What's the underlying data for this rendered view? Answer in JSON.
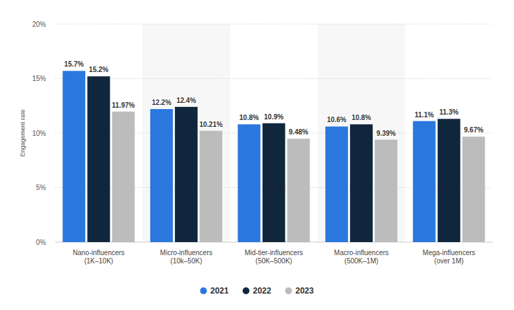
{
  "chart_data": {
    "type": "bar",
    "y_label": "Engagement rate",
    "categories": [
      "Nano-influencers\n(1K–10K)",
      "Micro-influencers\n(10k–50K)",
      "Mid-tier-influencers\n(50K–500K)",
      "Macro-influencers\n(500K–1M)",
      "Mega-influencers\n(over 1M)"
    ],
    "series": [
      {
        "name": "2021",
        "color": "#2a78de",
        "values": [
          15.7,
          12.2,
          10.8,
          10.6,
          11.1
        ],
        "value_labels": [
          "15.7%",
          "12.2%",
          "10.8%",
          "10.6%",
          "11.1%"
        ]
      },
      {
        "name": "2022",
        "color": "#0f263d",
        "values": [
          15.2,
          12.4,
          10.9,
          10.8,
          11.3
        ],
        "value_labels": [
          "15.2%",
          "12.4%",
          "10.9%",
          "10.8%",
          "11.3%"
        ]
      },
      {
        "name": "2023",
        "color": "#bcbcbc",
        "values": [
          11.97,
          10.21,
          9.48,
          9.39,
          9.67
        ],
        "value_labels": [
          "11.97%",
          "10.21%",
          "9.48%",
          "9.39%",
          "9.67%"
        ]
      }
    ],
    "ylim": [
      0,
      20
    ],
    "yticks": [
      {
        "value": 0,
        "label": "0%"
      },
      {
        "value": 5,
        "label": "5%"
      },
      {
        "value": 10,
        "label": "10%"
      },
      {
        "value": 15,
        "label": "15%"
      },
      {
        "value": 20,
        "label": "20%"
      }
    ],
    "grid": true,
    "data_labels": true,
    "legend": "bottom"
  }
}
